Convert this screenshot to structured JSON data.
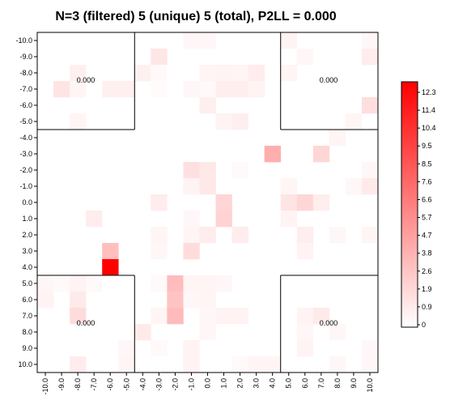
{
  "chart_data": {
    "type": "heatmap",
    "title": "N=3 (filtered) 5 (unique) 5 (total), P2LL = 0.000",
    "x_ticks": [
      "-10.0",
      "-9.0",
      "-8.0",
      "-7.0",
      "-6.0",
      "-5.0",
      "-4.0",
      "-3.0",
      "-2.0",
      "-1.0",
      "0.0",
      "1.0",
      "2.0",
      "3.0",
      "4.0",
      "5.0",
      "6.0",
      "7.0",
      "8.0",
      "9.0",
      "10.0"
    ],
    "y_ticks": [
      "-10.0",
      "-9.0",
      "-8.0",
      "-7.0",
      "-6.0",
      "-5.0",
      "-4.0",
      "-3.0",
      "-2.0",
      "-1.0",
      "0.0",
      "1.0",
      "2.0",
      "3.0",
      "4.0",
      "5.0",
      "6.0",
      "7.0",
      "8.0",
      "9.0",
      "10.0"
    ],
    "quadrant_labels": [
      {
        "corner": "top-left",
        "text": "0.000"
      },
      {
        "corner": "top-right",
        "text": "0.000"
      },
      {
        "corner": "bottom-left",
        "text": "0.000"
      },
      {
        "corner": "bottom-right",
        "text": "0.000"
      }
    ],
    "colorbar": {
      "ticks": [
        "0",
        "0.9",
        "1.9",
        "2.6",
        "3.8",
        "4.7",
        "5.7",
        "6.6",
        "7.6",
        "8.5",
        "9.5",
        "10.4",
        "11.4",
        "12.3"
      ],
      "min": 0,
      "max": 12.3,
      "low_color": "#ffffff",
      "high_color": "#ff0000"
    },
    "cells": [
      {
        "x": -1,
        "y": -10,
        "v": 0.4
      },
      {
        "x": 0,
        "y": -10,
        "v": 0.4
      },
      {
        "x": 5,
        "y": -10,
        "v": 0.6
      },
      {
        "x": 10,
        "y": -10,
        "v": 0.4
      },
      {
        "x": -3,
        "y": -9,
        "v": 1.2
      },
      {
        "x": 6,
        "y": -9,
        "v": 0.4
      },
      {
        "x": 10,
        "y": -9,
        "v": 0.9
      },
      {
        "x": -8,
        "y": -8,
        "v": 0.7
      },
      {
        "x": -4,
        "y": -8,
        "v": 0.7
      },
      {
        "x": -3,
        "y": -8,
        "v": 0.3
      },
      {
        "x": 0,
        "y": -8,
        "v": 0.5
      },
      {
        "x": 1,
        "y": -8,
        "v": 0.6
      },
      {
        "x": 2,
        "y": -8,
        "v": 0.5
      },
      {
        "x": 3,
        "y": -8,
        "v": 0.9
      },
      {
        "x": 5,
        "y": -8,
        "v": 0.5
      },
      {
        "x": -9,
        "y": -7,
        "v": 1.3
      },
      {
        "x": -8,
        "y": -7,
        "v": 0.5
      },
      {
        "x": -6,
        "y": -7,
        "v": 0.7
      },
      {
        "x": -5,
        "y": -7,
        "v": 0.7
      },
      {
        "x": -3,
        "y": -7,
        "v": 0.2
      },
      {
        "x": -1,
        "y": -7,
        "v": 0.4
      },
      {
        "x": 0,
        "y": -7,
        "v": 0.3
      },
      {
        "x": 1,
        "y": -7,
        "v": 0.8
      },
      {
        "x": 2,
        "y": -7,
        "v": 0.8
      },
      {
        "x": 3,
        "y": -7,
        "v": 0.6
      },
      {
        "x": 0,
        "y": -6,
        "v": 0.8
      },
      {
        "x": 10,
        "y": -6,
        "v": 1.6
      },
      {
        "x": -8,
        "y": -5,
        "v": 0.5
      },
      {
        "x": 1,
        "y": -5,
        "v": 0.6
      },
      {
        "x": 2,
        "y": -5,
        "v": 0.8
      },
      {
        "x": 9,
        "y": -5,
        "v": 0.5
      },
      {
        "x": 8,
        "y": -4,
        "v": 0.5
      },
      {
        "x": 4,
        "y": -3,
        "v": 3.9
      },
      {
        "x": 7,
        "y": -3,
        "v": 2.0
      },
      {
        "x": -1,
        "y": -2,
        "v": 1.5
      },
      {
        "x": 0,
        "y": -2,
        "v": 1.1
      },
      {
        "x": 2,
        "y": -2,
        "v": 0.3
      },
      {
        "x": 10,
        "y": -2,
        "v": 0.4
      },
      {
        "x": -1,
        "y": -1,
        "v": 0.6
      },
      {
        "x": 0,
        "y": -1,
        "v": 1.1
      },
      {
        "x": 5,
        "y": -1,
        "v": 0.5
      },
      {
        "x": 9,
        "y": -1,
        "v": 0.4
      },
      {
        "x": 10,
        "y": -1,
        "v": 1.0
      },
      {
        "x": -3,
        "y": 0,
        "v": 0.9
      },
      {
        "x": 1,
        "y": 0,
        "v": 2.0
      },
      {
        "x": 5,
        "y": 0,
        "v": 1.3
      },
      {
        "x": 6,
        "y": 0,
        "v": 2.0
      },
      {
        "x": 7,
        "y": 0,
        "v": 0.8
      },
      {
        "x": -7,
        "y": 1,
        "v": 0.9
      },
      {
        "x": -1,
        "y": 1,
        "v": 0.4
      },
      {
        "x": 1,
        "y": 1,
        "v": 2.1
      },
      {
        "x": 5,
        "y": 1,
        "v": 0.6
      },
      {
        "x": -3,
        "y": 2,
        "v": 0.5
      },
      {
        "x": -1,
        "y": 2,
        "v": 0.5
      },
      {
        "x": 0,
        "y": 2,
        "v": 0.9
      },
      {
        "x": 2,
        "y": 2,
        "v": 0.9
      },
      {
        "x": 6,
        "y": 2,
        "v": 0.8
      },
      {
        "x": 8,
        "y": 2,
        "v": 0.4
      },
      {
        "x": 10,
        "y": 2,
        "v": 0.5
      },
      {
        "x": -6,
        "y": 3,
        "v": 3.1
      },
      {
        "x": -3,
        "y": 3,
        "v": 0.4
      },
      {
        "x": -1,
        "y": 3,
        "v": 1.7
      },
      {
        "x": 6,
        "y": 3,
        "v": 0.6
      },
      {
        "x": -6,
        "y": 4,
        "v": 12.3
      },
      {
        "x": -10,
        "y": 5,
        "v": 0.4
      },
      {
        "x": -9,
        "y": 5,
        "v": 0.3
      },
      {
        "x": -8,
        "y": 5,
        "v": 0.6
      },
      {
        "x": -7,
        "y": 5,
        "v": 0.3
      },
      {
        "x": -3,
        "y": 5,
        "v": 0.3
      },
      {
        "x": -2,
        "y": 5,
        "v": 3.2
      },
      {
        "x": -1,
        "y": 5,
        "v": 0.5
      },
      {
        "x": 0,
        "y": 5,
        "v": 0.5
      },
      {
        "x": 1,
        "y": 5,
        "v": 0.4
      },
      {
        "x": -10,
        "y": 6,
        "v": 0.6
      },
      {
        "x": -8,
        "y": 6,
        "v": 1.0
      },
      {
        "x": -2,
        "y": 6,
        "v": 2.9
      },
      {
        "x": -1,
        "y": 6,
        "v": 0.4
      },
      {
        "x": 0,
        "y": 6,
        "v": 0.5
      },
      {
        "x": -8,
        "y": 7,
        "v": 1.7
      },
      {
        "x": -3,
        "y": 7,
        "v": 0.5
      },
      {
        "x": -2,
        "y": 7,
        "v": 3.3
      },
      {
        "x": 0,
        "y": 7,
        "v": 0.4
      },
      {
        "x": 1,
        "y": 7,
        "v": 0.6
      },
      {
        "x": 2,
        "y": 7,
        "v": 0.6
      },
      {
        "x": 6,
        "y": 7,
        "v": 0.6
      },
      {
        "x": 7,
        "y": 7,
        "v": 1.0
      },
      {
        "x": -4,
        "y": 8,
        "v": 1.0
      },
      {
        "x": 0,
        "y": 8,
        "v": 0.4
      },
      {
        "x": 6,
        "y": 8,
        "v": 0.4
      },
      {
        "x": 8,
        "y": 8,
        "v": 0.4
      },
      {
        "x": -5,
        "y": 9,
        "v": 0.4
      },
      {
        "x": -3,
        "y": 9,
        "v": 0.3
      },
      {
        "x": -1,
        "y": 9,
        "v": 0.6
      },
      {
        "x": 6,
        "y": 9,
        "v": 0.6
      },
      {
        "x": 10,
        "y": 9,
        "v": 0.4
      },
      {
        "x": -8,
        "y": 10,
        "v": 0.9
      },
      {
        "x": -5,
        "y": 10,
        "v": 0.5
      },
      {
        "x": -1,
        "y": 10,
        "v": 0.6
      },
      {
        "x": 2,
        "y": 10,
        "v": 0.3
      },
      {
        "x": 3,
        "y": 10,
        "v": 0.5
      },
      {
        "x": 4,
        "y": 10,
        "v": 0.5
      },
      {
        "x": 8,
        "y": 10,
        "v": 0.4
      },
      {
        "x": 10,
        "y": 10,
        "v": 0.4
      }
    ]
  }
}
